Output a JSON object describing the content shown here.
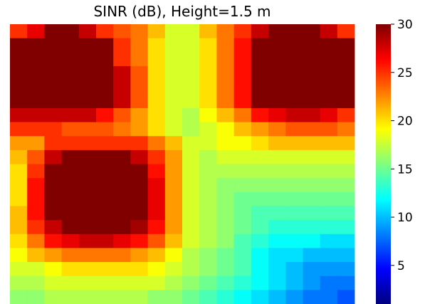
{
  "chart_data": {
    "type": "heatmap",
    "title": "SINR (dB), Height=1.5 m",
    "xlabel": "",
    "ylabel": "",
    "colormap": "jet",
    "colorbar": {
      "range": [
        1,
        30
      ],
      "ticks": [
        5,
        10,
        15,
        20,
        25,
        30
      ]
    },
    "grid": false,
    "rows": 20,
    "cols": 20,
    "values": [
      [
        25,
        27,
        30,
        30,
        28,
        25,
        24,
        23,
        21,
        18,
        18,
        21,
        23,
        25,
        28,
        30,
        30,
        30,
        28,
        25
      ],
      [
        30,
        30,
        30,
        30,
        30,
        30,
        25,
        23,
        20,
        18,
        18,
        20,
        23,
        26,
        30,
        30,
        30,
        30,
        30,
        30
      ],
      [
        30,
        30,
        30,
        30,
        30,
        30,
        25,
        23,
        20,
        18,
        18,
        20,
        23,
        26,
        30,
        30,
        30,
        30,
        30,
        30
      ],
      [
        30,
        30,
        30,
        30,
        30,
        30,
        28,
        24,
        20,
        18,
        18,
        20,
        23,
        26,
        30,
        30,
        30,
        30,
        30,
        30
      ],
      [
        30,
        30,
        30,
        30,
        30,
        30,
        28,
        24,
        20,
        18,
        18,
        20,
        23,
        26,
        30,
        30,
        30,
        30,
        30,
        30
      ],
      [
        30,
        30,
        30,
        30,
        30,
        30,
        28,
        24,
        20,
        18,
        18,
        20,
        23,
        26,
        30,
        30,
        30,
        30,
        30,
        30
      ],
      [
        28,
        28,
        28,
        28,
        28,
        26,
        24,
        22,
        20,
        18,
        17,
        19,
        21,
        23,
        26,
        27,
        28,
        28,
        27,
        25
      ],
      [
        25,
        25,
        25,
        24,
        24,
        24,
        23,
        22,
        20,
        18,
        17,
        18,
        19,
        21,
        22,
        23,
        24,
        24,
        24,
        23
      ],
      [
        22,
        22,
        25,
        25,
        25,
        25,
        25,
        25,
        23,
        21,
        18,
        18,
        19,
        19,
        20,
        21,
        21,
        21,
        21,
        21
      ],
      [
        21,
        24,
        28,
        30,
        30,
        30,
        30,
        28,
        25,
        22,
        18,
        17,
        18,
        18,
        18,
        18,
        18,
        18,
        18,
        18
      ],
      [
        20,
        25,
        30,
        30,
        30,
        30,
        30,
        30,
        26,
        22,
        18,
        17,
        17,
        17,
        17,
        17,
        17,
        17,
        17,
        17
      ],
      [
        20,
        26,
        30,
        30,
        30,
        30,
        30,
        30,
        27,
        22,
        18,
        17,
        16,
        16,
        16,
        16,
        16,
        16,
        16,
        16
      ],
      [
        20,
        26,
        30,
        30,
        30,
        30,
        30,
        30,
        27,
        22,
        18,
        17,
        16,
        15,
        15,
        15,
        15,
        15,
        15,
        15
      ],
      [
        21,
        26,
        30,
        30,
        30,
        30,
        30,
        30,
        27,
        22,
        18,
        17,
        16,
        15,
        14,
        14,
        14,
        14,
        14,
        14
      ],
      [
        21,
        25,
        28,
        30,
        30,
        30,
        30,
        29,
        26,
        22,
        18,
        17,
        16,
        15,
        14,
        13,
        13,
        13,
        13,
        13
      ],
      [
        20,
        23,
        26,
        27,
        28,
        28,
        27,
        26,
        24,
        21,
        18,
        17,
        16,
        14,
        13,
        12,
        12,
        12,
        11,
        11
      ],
      [
        19,
        21,
        22,
        23,
        23,
        23,
        23,
        22,
        21,
        19,
        17,
        16,
        15,
        14,
        12,
        11,
        11,
        10,
        10,
        10
      ],
      [
        18,
        18,
        19,
        20,
        20,
        20,
        20,
        20,
        19,
        18,
        17,
        16,
        15,
        14,
        12,
        11,
        10,
        9,
        9,
        9
      ],
      [
        17,
        17,
        18,
        18,
        18,
        18,
        18,
        18,
        18,
        17,
        16,
        15,
        14,
        13,
        12,
        11,
        10,
        9,
        8,
        8
      ],
      [
        16,
        16,
        17,
        17,
        17,
        17,
        17,
        17,
        16,
        16,
        15,
        14,
        13,
        12,
        11,
        10,
        9,
        8,
        8,
        7
      ]
    ]
  }
}
